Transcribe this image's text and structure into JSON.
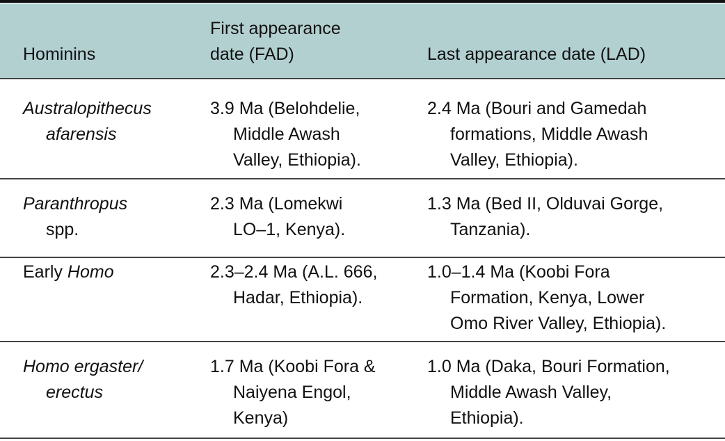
{
  "table": {
    "header": [
      [
        "Hominins"
      ],
      [
        "First appearance",
        "date (FAD)"
      ],
      [
        "Last appearance date (LAD)"
      ]
    ],
    "rows": [
      {
        "hominin": [
          [
            {
              "text": "Australopithecus",
              "italic": true
            }
          ],
          [
            {
              "text": "afarensis",
              "italic": true
            }
          ]
        ],
        "fad": [
          "3.9 Ma (Belohdelie,",
          "Middle Awash",
          "Valley, Ethiopia)."
        ],
        "lad": [
          "2.4 Ma (Bouri and Gamedah",
          "formations, Middle Awash",
          "Valley, Ethiopia)."
        ]
      },
      {
        "hominin": [
          [
            {
              "text": "Paranthropus",
              "italic": true
            }
          ],
          [
            {
              "text": "spp."
            }
          ]
        ],
        "fad": [
          "2.3 Ma (Lomekwi",
          "LO–1, Kenya)."
        ],
        "lad": [
          "1.3 Ma (Bed II, Olduvai Gorge,",
          "Tanzania)."
        ]
      },
      {
        "hominin": [
          [
            {
              "text": "Early "
            },
            {
              "text": "Homo",
              "italic": true
            }
          ]
        ],
        "fad": [
          "2.3–2.4 Ma (A.L. 666,",
          "Hadar, Ethiopia)."
        ],
        "lad": [
          "1.0–1.4 Ma (Koobi Fora",
          "Formation, Kenya, Lower",
          "Omo River Valley, Ethiopia)."
        ]
      },
      {
        "hominin": [
          [
            {
              "text": "Homo ergaster/",
              "italic": true
            }
          ],
          [
            {
              "text": "erectus",
              "italic": true
            }
          ]
        ],
        "fad": [
          "1.7 Ma (Koobi Fora &",
          "Naiyena Engol,",
          "Kenya)"
        ],
        "lad": [
          "1.0 Ma (Daka, Bouri Formation,",
          "Middle Awash Valley,",
          "Ethiopia)."
        ]
      }
    ]
  }
}
